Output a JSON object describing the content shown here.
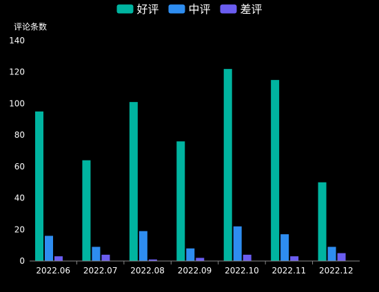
{
  "chart_data": {
    "type": "bar",
    "title": "",
    "xlabel": "",
    "ylabel": "评论条数",
    "categories": [
      "2022.06",
      "2022.07",
      "2022.08",
      "2022.09",
      "2022.10",
      "2022.11",
      "2022.12"
    ],
    "series": [
      {
        "name": "好评",
        "color": "#00B4A0",
        "values": [
          95,
          64,
          101,
          76,
          122,
          115,
          50
        ]
      },
      {
        "name": "中评",
        "color": "#2E8DF0",
        "values": [
          16,
          9,
          19,
          8,
          22,
          17,
          9
        ]
      },
      {
        "name": "差评",
        "color": "#6A5DF0",
        "values": [
          3,
          4,
          1,
          2,
          4,
          3,
          5
        ]
      }
    ],
    "ylim": [
      0,
      140
    ],
    "yticks": [
      0,
      20,
      40,
      60,
      80,
      100,
      120,
      140
    ],
    "grid": false,
    "legend_position": "top-center",
    "colors": {
      "background": "#000000",
      "text": "#FFFFFF",
      "axis": "#888888"
    }
  }
}
